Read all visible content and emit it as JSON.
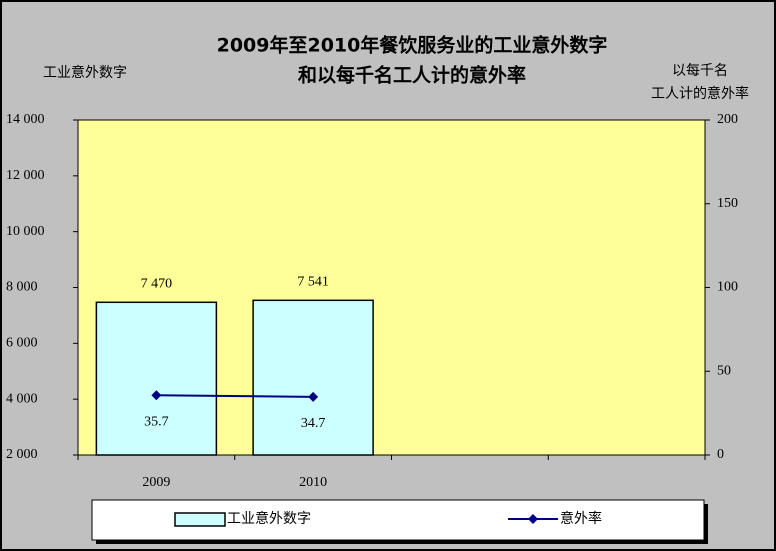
{
  "chart_data": {
    "type": "bar-line",
    "title": [
      "2009年至2010年餐饮服务业的工业意外数字",
      "和以每千名工人计的意外率"
    ],
    "ylabel": "工业意外数字",
    "y2label": [
      "以每千名",
      "工人计的意外率"
    ],
    "categories": [
      "2009",
      "2010",
      null,
      null
    ],
    "series": [
      {
        "name": "工业意外数字",
        "type": "bar",
        "color": "#ccffff",
        "values": [
          7470,
          7541,
          null,
          null
        ],
        "value_labels": [
          "7 470",
          "7 541",
          null,
          null
        ]
      },
      {
        "name": "意外率",
        "type": "line",
        "axis": "y2",
        "color": "#000080",
        "values": [
          35.7,
          34.7,
          null,
          null
        ]
      }
    ],
    "ylim": [
      2000,
      14000
    ],
    "yticks": [
      {
        "value": 2000,
        "label": "2 000"
      },
      {
        "value": 4000,
        "label": "4 000"
      },
      {
        "value": 6000,
        "label": "6 000"
      },
      {
        "value": 8000,
        "label": "8 000"
      },
      {
        "value": 10000,
        "label": "10 000"
      },
      {
        "value": 12000,
        "label": "12 000"
      },
      {
        "value": 14000,
        "label": "14 000"
      }
    ],
    "y2lim": [
      0,
      200
    ],
    "y2ticks": [
      0,
      50,
      100,
      150,
      200
    ],
    "plot_background": "#ffff99"
  }
}
